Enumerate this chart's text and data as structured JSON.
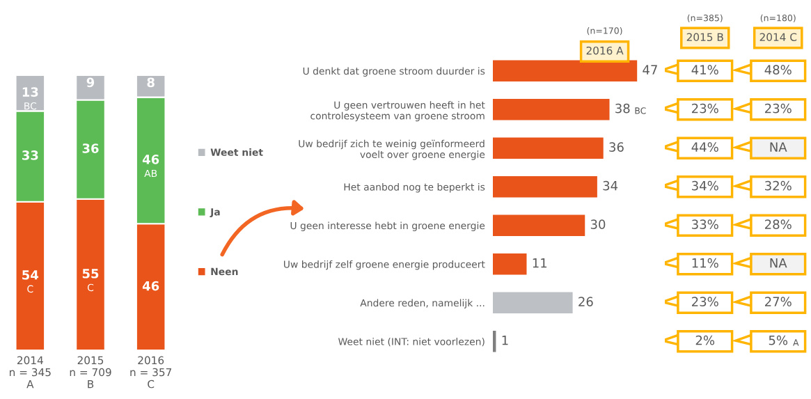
{
  "chart_data": [
    {
      "type": "bar",
      "stacked": true,
      "categories": [
        "2014\nn = 345\nA",
        "2015\nn = 709\nB",
        "2016\nn = 357\nC"
      ],
      "tick_labels": "x",
      "legend": "right",
      "grid": false,
      "series": [
        {
          "name": "Neen",
          "color": "#e8541a",
          "values": [
            54,
            55,
            46
          ],
          "value_labels": [
            "54\nC",
            "55\nC",
            "46"
          ]
        },
        {
          "name": "Ja",
          "color": "#5dbb55",
          "values": [
            33,
            36,
            46
          ],
          "value_labels": [
            "33",
            "36",
            "46\nAB"
          ]
        },
        {
          "name": "Weet niet",
          "color": "#b8bcc0",
          "values": [
            13,
            9,
            8
          ],
          "value_labels": [
            "13\nBC",
            "9",
            "8"
          ]
        }
      ]
    },
    {
      "type": "bar",
      "orientation": "horizontal",
      "title": "2016 A",
      "subtitle": "(n=170)",
      "grid": false,
      "tick_labels": "y",
      "categories": [
        "U denkt dat groene stroom duurder is",
        "U geen vertrouwen heeft in het\ncontrolesysteem van groene stroom",
        "Uw bedrijf zich te weinig geïnformeerd\nvoelt over groene energie",
        "Het aanbod nog te beperkt is",
        "U geen interesse hebt in groene energie",
        "Uw bedrijf zelf groene energie produceert",
        "Andere reden, namelijk ...",
        "Weet niet (INT: niet voorlezen)"
      ],
      "values": [
        47,
        38,
        36,
        34,
        30,
        11,
        26,
        1
      ],
      "colors": [
        "#e8541a",
        "#e8541a",
        "#e8541a",
        "#e8541a",
        "#e8541a",
        "#e8541a",
        "#bdc1c5",
        "#7f7f7f"
      ],
      "value_labels": [
        "47",
        "38 BC",
        "36",
        "34",
        "30",
        "11",
        "26",
        "1"
      ]
    },
    {
      "type": "other",
      "categories": [
        "2015 B",
        "2014 C"
      ],
      "annotations": [
        "(n=385)",
        "(n=180)",
        "41%",
        "48%",
        "23%",
        "23%",
        "44%",
        "NA",
        "34%",
        "32%",
        "33%",
        "28%",
        "11%",
        "NA",
        "23%",
        "27%",
        "2%",
        "5% A"
      ]
    }
  ]
}
